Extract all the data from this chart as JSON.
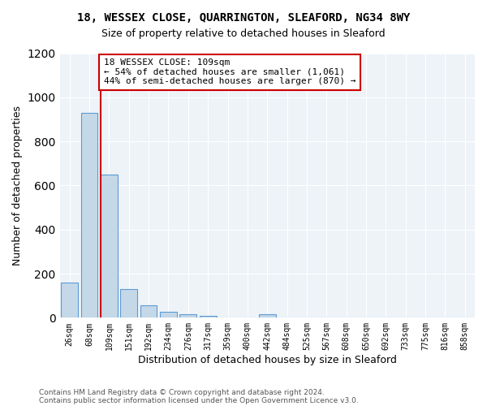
{
  "title1": "18, WESSEX CLOSE, QUARRINGTON, SLEAFORD, NG34 8WY",
  "title2": "Size of property relative to detached houses in Sleaford",
  "xlabel": "Distribution of detached houses by size in Sleaford",
  "ylabel": "Number of detached properties",
  "footer1": "Contains HM Land Registry data © Crown copyright and database right 2024.",
  "footer2": "Contains public sector information licensed under the Open Government Licence v3.0.",
  "bins": [
    "26sqm",
    "68sqm",
    "109sqm",
    "151sqm",
    "192sqm",
    "234sqm",
    "276sqm",
    "317sqm",
    "359sqm",
    "400sqm",
    "442sqm",
    "484sqm",
    "525sqm",
    "567sqm",
    "608sqm",
    "650sqm",
    "692sqm",
    "733sqm",
    "775sqm",
    "816sqm",
    "858sqm"
  ],
  "values": [
    160,
    930,
    650,
    130,
    55,
    28,
    15,
    10,
    0,
    0,
    15,
    0,
    0,
    0,
    0,
    0,
    0,
    0,
    0,
    0,
    0
  ],
  "bar_color": "#c5d8e8",
  "bar_edge_color": "#5b9bd5",
  "redline_index": 2,
  "annotation_text": "18 WESSEX CLOSE: 109sqm\n← 54% of detached houses are smaller (1,061)\n44% of semi-detached houses are larger (870) →",
  "annotation_box_edge": "#cc0000",
  "redline_color": "#cc0000",
  "ylim": [
    0,
    1200
  ],
  "yticks": [
    0,
    200,
    400,
    600,
    800,
    1000,
    1200
  ],
  "bg_color": "#eef3f8",
  "title1_fontsize": 10,
  "title2_fontsize": 9,
  "xlabel_fontsize": 9,
  "ylabel_fontsize": 9,
  "annotation_fontsize": 8
}
